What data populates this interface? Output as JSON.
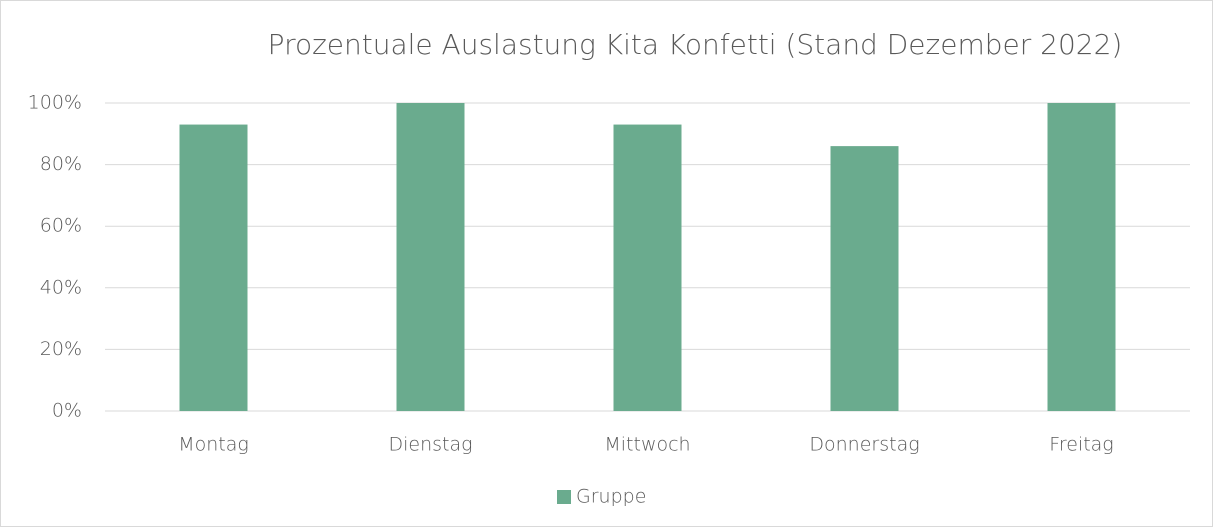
{
  "chart_data": {
    "type": "bar",
    "title": "Prozentuale Auslastung Kita Konfetti (Stand Dezember 2022)",
    "categories": [
      "Montag",
      "Dienstag",
      "Mittwoch",
      "Donnerstag",
      "Freitag"
    ],
    "series": [
      {
        "name": "Gruppe",
        "color": "#6aab8e",
        "values": [
          93,
          100,
          93,
          86,
          100
        ]
      }
    ],
    "ylim": [
      0,
      100
    ],
    "yticks": [
      {
        "value": 0,
        "label": "0%"
      },
      {
        "value": 20,
        "label": "20%"
      },
      {
        "value": 40,
        "label": "40%"
      },
      {
        "value": 60,
        "label": "60%"
      },
      {
        "value": 80,
        "label": "80%"
      },
      {
        "value": 100,
        "label": "100%"
      }
    ],
    "grid": true,
    "legend": "bottom"
  }
}
